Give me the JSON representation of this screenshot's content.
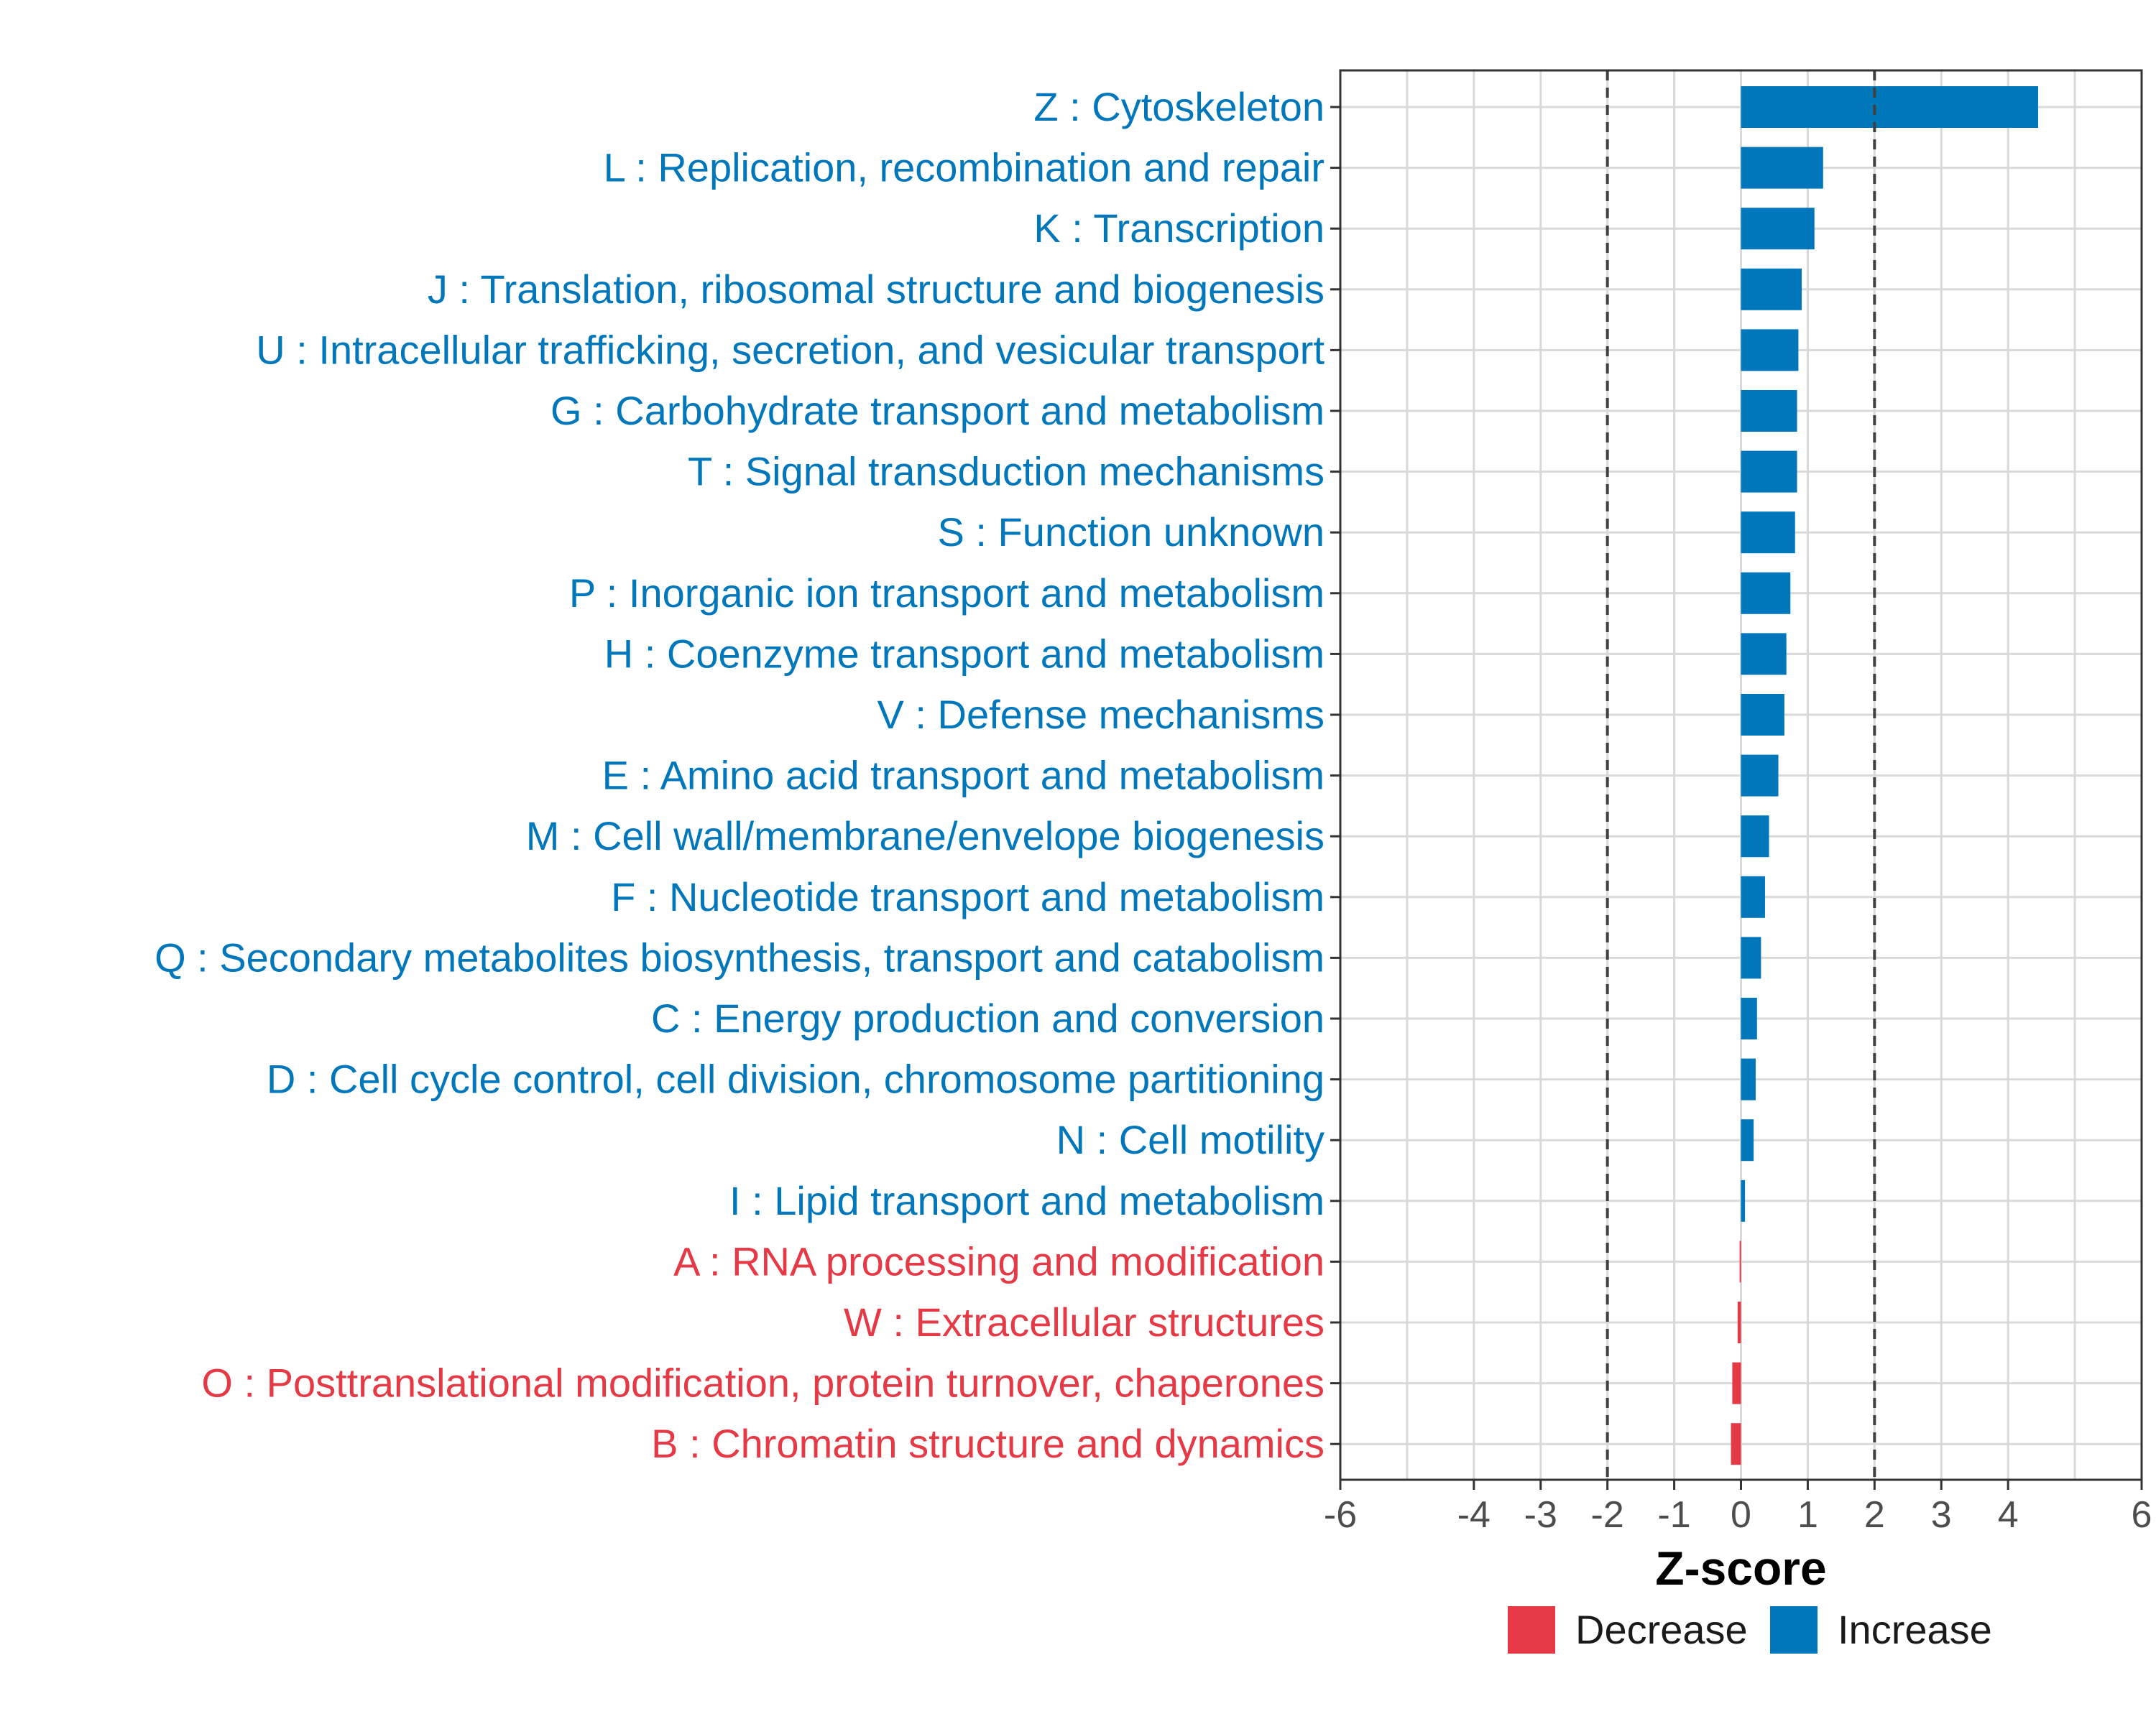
{
  "chart_data": {
    "type": "bar",
    "orientation": "horizontal",
    "title": "",
    "xlabel": "Z-score",
    "ylabel": "",
    "xlim": [
      -6,
      6
    ],
    "xticks": [
      -6,
      -4,
      -3,
      -2,
      -1,
      0,
      1,
      2,
      3,
      4,
      6
    ],
    "reference_lines": [
      -2,
      2
    ],
    "grid": true,
    "legend_position": "bottom",
    "colors": {
      "Decrease": "#e63946",
      "Increase": "#0077bb"
    },
    "categories": [
      "Z : Cytoskeleton",
      "L : Replication, recombination and repair",
      "K : Transcription",
      "J : Translation, ribosomal structure and biogenesis",
      "U : Intracellular trafficking, secretion, and vesicular transport",
      "G : Carbohydrate transport and metabolism",
      "T : Signal transduction mechanisms",
      "S : Function unknown",
      "P : Inorganic ion transport and metabolism",
      "H : Coenzyme transport and metabolism",
      "V : Defense mechanisms",
      "E : Amino acid transport and metabolism",
      "M : Cell wall/membrane/envelope biogenesis",
      "F : Nucleotide transport and metabolism",
      "Q : Secondary metabolites biosynthesis, transport and catabolism",
      "C : Energy production and conversion",
      "D : Cell cycle control, cell division, chromosome partitioning",
      "N : Cell motility",
      "I : Lipid transport and metabolism",
      "A : RNA processing and modification",
      "W : Extracellular structures",
      "O : Posttranslational modification, protein turnover, chaperones",
      "B : Chromatin structure and dynamics"
    ],
    "values": [
      4.45,
      1.23,
      1.1,
      0.91,
      0.86,
      0.84,
      0.84,
      0.81,
      0.74,
      0.68,
      0.65,
      0.56,
      0.42,
      0.36,
      0.3,
      0.24,
      0.22,
      0.19,
      0.06,
      -0.02,
      -0.05,
      -0.13,
      -0.15
    ],
    "groups": [
      "Increase",
      "Increase",
      "Increase",
      "Increase",
      "Increase",
      "Increase",
      "Increase",
      "Increase",
      "Increase",
      "Increase",
      "Increase",
      "Increase",
      "Increase",
      "Increase",
      "Increase",
      "Increase",
      "Increase",
      "Increase",
      "Increase",
      "Decrease",
      "Decrease",
      "Decrease",
      "Decrease"
    ],
    "legend": [
      "Decrease",
      "Increase"
    ]
  }
}
